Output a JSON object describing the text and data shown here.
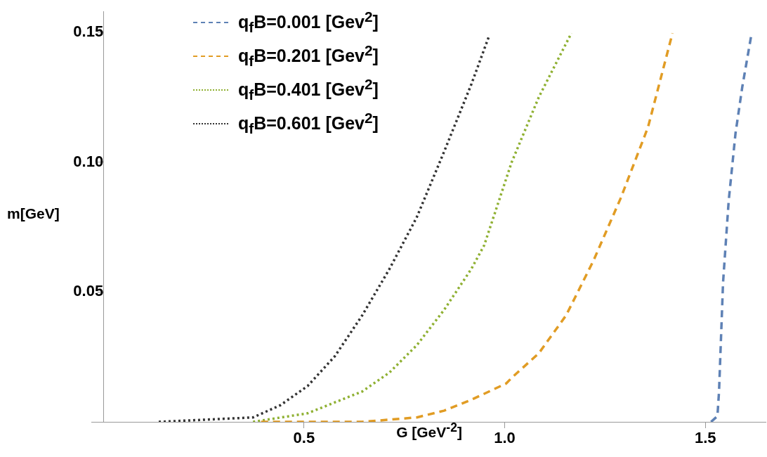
{
  "chart_data": {
    "type": "line",
    "xlabel": "G [GeV$^{-2}$]",
    "ylabel": "m[GeV]",
    "xlim": [
      -0.03,
      1.65
    ],
    "ylim": [
      0,
      0.158
    ],
    "xticks": [
      0.5,
      {
        "value": 1,
        "label": "1.0"
      },
      1.5
    ],
    "yticks": [
      0.05,
      {
        "value": 0.1,
        "label": "0.10"
      },
      0.15
    ],
    "grid": false,
    "legend": "top left",
    "marker": "none",
    "series": [
      {
        "name": "q$_{f}$B=0.001 [Gev$^{2}$]",
        "color": "#5e81b5",
        "line_style": "dashed",
        "x": [
          1.514,
          1.53,
          1.534,
          1.544,
          1.558,
          1.575,
          1.592,
          1.614
        ],
        "values": [
          0,
          0.0022,
          0.0117,
          0.0536,
          0.085,
          0.111,
          0.129,
          0.1485
        ]
      },
      {
        "name": "q$_{f}$B=0.201 [Gev$^{2}$]",
        "color": "#e19c24",
        "line_style": "dashed",
        "x": [
          0.393,
          0.645,
          0.781,
          0.849,
          0.917,
          1.004,
          1.017,
          1.085,
          1.153,
          1.221,
          1.289,
          1.357,
          1.418
        ],
        "values": [
          0,
          0,
          0.0017,
          0.0043,
          0.0085,
          0.0148,
          0.0169,
          0.0264,
          0.041,
          0.062,
          0.0861,
          0.1134,
          0.1496
        ]
      },
      {
        "name": "q$_{f}$B=0.401 [Gev$^{2}$]",
        "color": "#8fb032",
        "line_style": "dotted",
        "x": [
          0.373,
          0.509,
          0.645,
          0.713,
          0.781,
          0.849,
          0.917,
          0.949,
          1.017,
          1.085,
          1.166
        ],
        "values": [
          0,
          0.0033,
          0.0117,
          0.019,
          0.0295,
          0.0431,
          0.0589,
          0.068,
          0.0998,
          0.125,
          0.1496
        ]
      },
      {
        "name": "q$_{f}$B=0.601 [Gev$^{2}$]",
        "color": "#333333",
        "line_style": "dotted",
        "x": [
          0.138,
          0.373,
          0.441,
          0.509,
          0.577,
          0.645,
          0.713,
          0.781,
          0.849,
          0.917,
          0.961
        ],
        "values": [
          0,
          0.0017,
          0.0064,
          0.0138,
          0.0253,
          0.041,
          0.0589,
          0.0788,
          0.104,
          0.13,
          0.1485
        ]
      }
    ]
  }
}
